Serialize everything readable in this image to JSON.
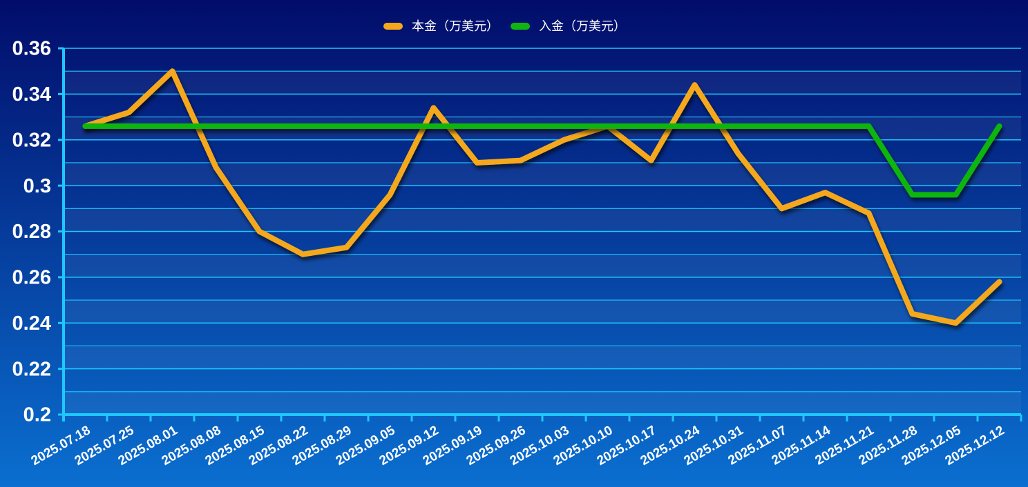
{
  "chart_data": {
    "type": "line",
    "categories": [
      "2025.07.18",
      "2025.07.25",
      "2025.08.01",
      "2025.08.08",
      "2025.08.15",
      "2025.08.22",
      "2025.08.29",
      "2025.09.05",
      "2025.09.12",
      "2025.09.19",
      "2025.09.26",
      "2025.10.03",
      "2025.10.10",
      "2025.10.17",
      "2025.10.24",
      "2025.10.31",
      "2025.11.07",
      "2025.11.14",
      "2025.11.21",
      "2025.11.28",
      "2025.12.05",
      "2025.12.12"
    ],
    "series": [
      {
        "name": "本金（万美元）",
        "color": "#f5a81c",
        "values": [
          0.326,
          0.332,
          0.35,
          0.308,
          0.28,
          0.27,
          0.273,
          0.296,
          0.334,
          0.31,
          0.311,
          0.32,
          0.326,
          0.311,
          0.344,
          0.314,
          0.29,
          0.297,
          0.288,
          0.244,
          0.24,
          0.258
        ]
      },
      {
        "name": "入金（万美元）",
        "color": "#11b511",
        "values": [
          0.326,
          0.326,
          0.326,
          0.326,
          0.326,
          0.326,
          0.326,
          0.326,
          0.326,
          0.326,
          0.326,
          0.326,
          0.326,
          0.326,
          0.326,
          0.326,
          0.326,
          0.326,
          0.326,
          0.296,
          0.296,
          0.326
        ]
      }
    ],
    "ylim": [
      0.2,
      0.36
    ],
    "yticks": [
      0.2,
      0.22,
      0.24,
      0.26,
      0.28,
      0.3,
      0.32,
      0.34,
      0.36
    ],
    "grid": true,
    "legend": "top"
  }
}
